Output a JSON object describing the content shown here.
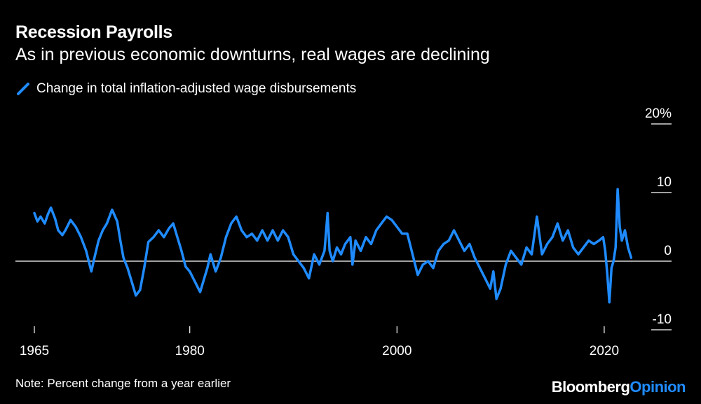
{
  "header": {
    "title": "Recession Payrolls",
    "subtitle": "As in previous economic downturns, real wages are declining"
  },
  "footer": {
    "note": "Note: Percent change from a year earlier",
    "brand_main": "Bloomberg",
    "brand_accent": "Opinion"
  },
  "colors": {
    "background": "#000000",
    "text": "#ffffff",
    "series": "#1f8bff",
    "axis_line": "#ffffff"
  },
  "chart_data": {
    "type": "line",
    "title": "Recession Payrolls",
    "subtitle": "As in previous economic downturns, real wages are declining",
    "xlabel": "",
    "ylabel": "",
    "x_ticks": [
      {
        "value": 1965,
        "label": "1965"
      },
      {
        "value": 1980,
        "label": "1980"
      },
      {
        "value": 2000,
        "label": "2000"
      },
      {
        "value": 2020,
        "label": "2020"
      }
    ],
    "y_ticks": [
      {
        "value": 20,
        "label": "20%"
      },
      {
        "value": 10,
        "label": "10"
      },
      {
        "value": 0,
        "label": "0"
      },
      {
        "value": -10,
        "label": "-10"
      }
    ],
    "xlim": [
      1965,
      2026.5
    ],
    "ylim": [
      -10,
      20
    ],
    "legend_position": "top-left",
    "grid": false,
    "series": [
      {
        "name": "Change in total inflation-adjusted wage disbursements",
        "color": "#1f8bff",
        "x": [
          1965.0,
          1965.3,
          1965.6,
          1966.0,
          1966.3,
          1966.6,
          1967.0,
          1967.3,
          1967.7,
          1968.0,
          1968.5,
          1969.0,
          1969.5,
          1970.0,
          1970.5,
          1970.8,
          1971.2,
          1971.6,
          1972.0,
          1972.5,
          1973.0,
          1973.3,
          1973.6,
          1974.0,
          1974.4,
          1974.8,
          1975.2,
          1975.6,
          1976.0,
          1976.5,
          1977.0,
          1977.5,
          1978.0,
          1978.4,
          1978.8,
          1979.2,
          1979.6,
          1980.0,
          1980.5,
          1981.0,
          1981.3,
          1981.7,
          1982.0,
          1982.5,
          1983.0,
          1983.5,
          1984.0,
          1984.5,
          1985.0,
          1985.5,
          1986.0,
          1986.5,
          1987.0,
          1987.5,
          1988.0,
          1988.5,
          1989.0,
          1989.5,
          1990.0,
          1990.5,
          1991.0,
          1991.5,
          1992.0,
          1992.5,
          1993.0,
          1993.3,
          1993.5,
          1993.8,
          1994.2,
          1994.6,
          1995.0,
          1995.5,
          1995.7,
          1996.0,
          1996.5,
          1997.0,
          1997.5,
          1998.0,
          1998.5,
          1999.0,
          1999.5,
          2000.0,
          2000.5,
          2001.0,
          2001.5,
          2002.0,
          2002.5,
          2003.0,
          2003.5,
          2004.0,
          2004.5,
          2005.0,
          2005.5,
          2006.0,
          2006.5,
          2007.0,
          2007.5,
          2008.0,
          2008.5,
          2009.0,
          2009.3,
          2009.6,
          2010.0,
          2010.5,
          2011.0,
          2011.5,
          2012.0,
          2012.5,
          2013.0,
          2013.5,
          2014.0,
          2014.5,
          2015.0,
          2015.5,
          2016.0,
          2016.5,
          2017.0,
          2017.5,
          2018.0,
          2018.5,
          2019.0,
          2019.5,
          2019.9,
          2020.1,
          2020.3,
          2020.5,
          2020.7,
          2020.9,
          2021.1,
          2021.3,
          2021.5,
          2021.7,
          2022.0,
          2022.3,
          2022.6
        ],
        "values": [
          7.0,
          5.8,
          6.5,
          5.5,
          6.8,
          7.8,
          6.2,
          4.5,
          3.8,
          4.5,
          6.0,
          5.0,
          3.5,
          1.5,
          -1.5,
          0.5,
          3.0,
          4.5,
          5.5,
          7.5,
          5.8,
          3.0,
          0.5,
          -1.0,
          -3.0,
          -5.0,
          -4.2,
          -1.0,
          2.8,
          3.5,
          4.5,
          3.5,
          4.8,
          5.5,
          3.5,
          1.5,
          -0.8,
          -1.5,
          -3.0,
          -4.5,
          -3.0,
          -1.0,
          1.0,
          -1.5,
          0.5,
          3.5,
          5.5,
          6.5,
          4.5,
          3.5,
          4.0,
          3.0,
          4.5,
          3.0,
          4.5,
          3.0,
          4.5,
          3.5,
          1.0,
          0.0,
          -1.0,
          -2.5,
          1.0,
          -0.5,
          1.5,
          7.0,
          1.5,
          0.0,
          2.0,
          1.0,
          2.5,
          3.5,
          -0.5,
          3.0,
          1.5,
          3.5,
          2.5,
          4.5,
          5.5,
          6.5,
          6.0,
          5.0,
          4.0,
          4.0,
          1.0,
          -2.0,
          -0.5,
          0.0,
          -1.0,
          1.5,
          2.5,
          3.0,
          4.5,
          3.0,
          1.5,
          2.5,
          0.5,
          -1.0,
          -2.5,
          -4.0,
          -1.5,
          -5.5,
          -4.0,
          -0.5,
          1.5,
          0.5,
          -0.5,
          2.0,
          1.0,
          6.5,
          1.0,
          2.5,
          3.5,
          5.5,
          3.0,
          4.5,
          2.0,
          1.0,
          2.0,
          3.0,
          2.5,
          3.0,
          3.5,
          1.5,
          -2.0,
          -6.0,
          -1.0,
          0.0,
          2.0,
          10.5,
          5.0,
          3.0,
          4.5,
          2.0,
          0.5
        ]
      }
    ]
  }
}
